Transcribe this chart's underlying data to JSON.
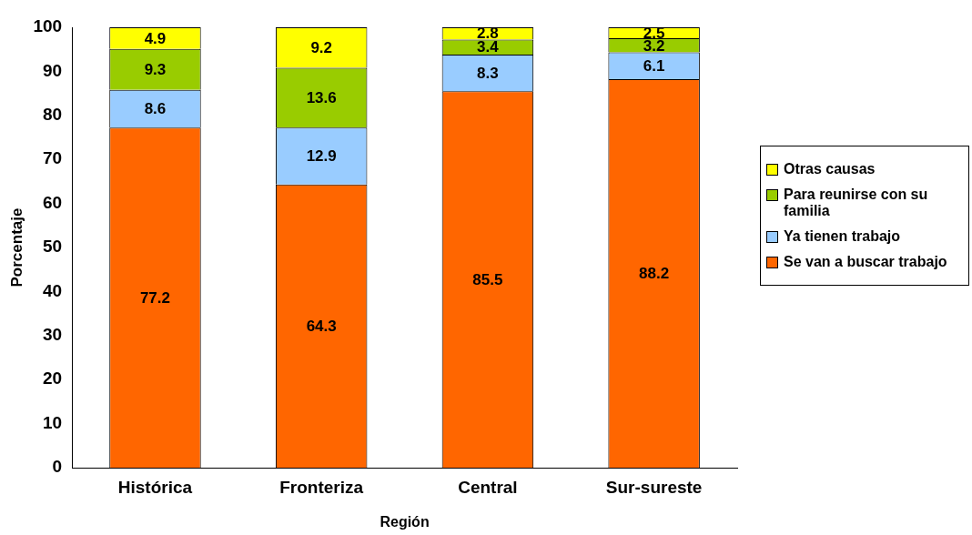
{
  "chart_data": {
    "type": "bar",
    "stacked": true,
    "xlabel": "Región",
    "ylabel": "Porcentaje",
    "categories": [
      "Histórica",
      "Fronteriza",
      "Central",
      "Sur-sureste"
    ],
    "series": [
      {
        "name": "Se van a buscar trabajo",
        "color": "#ff6600",
        "values": [
          77.2,
          64.3,
          85.5,
          88.2
        ]
      },
      {
        "name": "Ya tienen trabajo",
        "color": "#99ccff",
        "values": [
          8.6,
          12.9,
          8.3,
          6.1
        ]
      },
      {
        "name": "Para reunirse con su familia",
        "color": "#99cc00",
        "values": [
          9.3,
          13.6,
          3.4,
          3.2
        ]
      },
      {
        "name": "Otras causas",
        "color": "#ffff00",
        "values": [
          4.9,
          9.2,
          2.8,
          2.5
        ]
      }
    ],
    "ylim": [
      0,
      100
    ],
    "yticks": [
      0,
      10,
      20,
      30,
      40,
      50,
      60,
      70,
      80,
      90,
      100
    ],
    "data_labels": true,
    "legend": "right"
  }
}
